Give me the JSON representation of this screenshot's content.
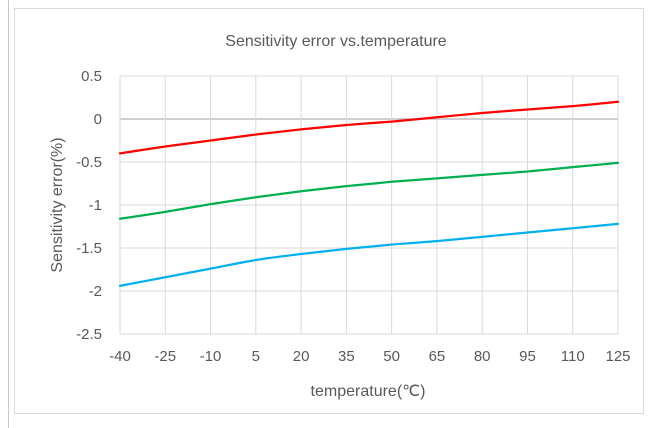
{
  "chart_data": {
    "type": "line",
    "title": "Sensitivity error vs.temperature",
    "xlabel": "temperature(℃)",
    "ylabel": "Sensitivity error(%)",
    "x": [
      -40,
      -25,
      -10,
      5,
      20,
      35,
      50,
      65,
      80,
      95,
      110,
      125
    ],
    "x_tick_labels": [
      "-40",
      "-25",
      "-10",
      "5",
      "20",
      "35",
      "50",
      "65",
      "80",
      "95",
      "110",
      "125"
    ],
    "y_tick_labels": [
      "0.5",
      "0",
      "-0.5",
      "-1",
      "-1.5",
      "-2",
      "-2.5"
    ],
    "y_ticks": [
      0.5,
      0,
      -0.5,
      -1,
      -1.5,
      -2,
      -2.5
    ],
    "ylim": [
      -2.5,
      0.5
    ],
    "grid": true,
    "legend": "none",
    "series": [
      {
        "color": "#ff0000",
        "values": [
          -0.4,
          -0.32,
          -0.25,
          -0.18,
          -0.12,
          -0.07,
          -0.03,
          0.02,
          0.07,
          0.11,
          0.15,
          0.2
        ]
      },
      {
        "color": "#00b050",
        "values": [
          -1.16,
          -1.08,
          -0.99,
          -0.91,
          -0.84,
          -0.78,
          -0.73,
          -0.69,
          -0.65,
          -0.61,
          -0.56,
          -0.51
        ]
      },
      {
        "color": "#00b0f0",
        "values": [
          -1.94,
          -1.84,
          -1.74,
          -1.64,
          -1.57,
          -1.51,
          -1.46,
          -1.42,
          -1.37,
          -1.32,
          -1.27,
          -1.22
        ]
      }
    ]
  }
}
